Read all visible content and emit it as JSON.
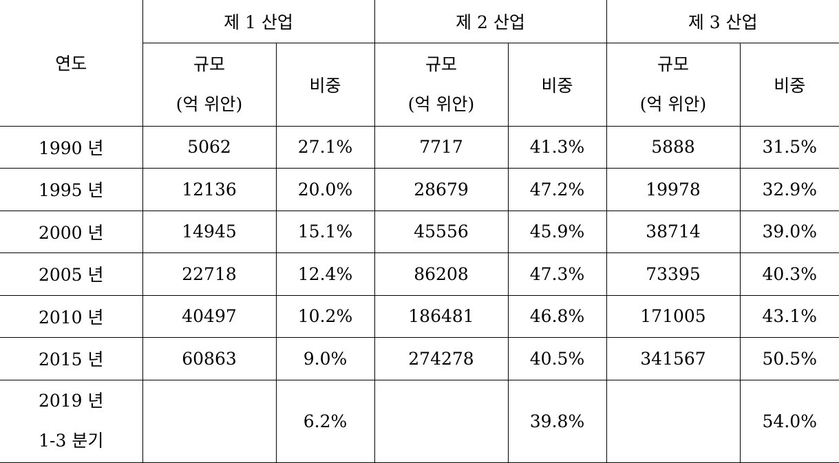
{
  "table": {
    "corner": "연도",
    "groups": [
      {
        "title": "제 1 산업",
        "size_label": [
          "규모",
          "(억 위안)"
        ],
        "share_label": "비중"
      },
      {
        "title": "제 2 산업",
        "size_label": [
          "규모",
          "(억 위안)"
        ],
        "share_label": "비중"
      },
      {
        "title": "제 3 산업",
        "size_label": [
          "규모",
          "(억 위안)"
        ],
        "share_label": "비중"
      }
    ],
    "rows": [
      {
        "year": [
          "1990 년"
        ],
        "industries": [
          {
            "size": "5062",
            "share": "27.1%"
          },
          {
            "size": "7717",
            "share": "41.3%"
          },
          {
            "size": "5888",
            "share": "31.5%"
          }
        ]
      },
      {
        "year": [
          "1995 년"
        ],
        "industries": [
          {
            "size": "12136",
            "share": "20.0%"
          },
          {
            "size": "28679",
            "share": "47.2%"
          },
          {
            "size": "19978",
            "share": "32.9%"
          }
        ]
      },
      {
        "year": [
          "2000 년"
        ],
        "industries": [
          {
            "size": "14945",
            "share": "15.1%"
          },
          {
            "size": "45556",
            "share": "45.9%"
          },
          {
            "size": "38714",
            "share": "39.0%"
          }
        ]
      },
      {
        "year": [
          "2005 년"
        ],
        "industries": [
          {
            "size": "22718",
            "share": "12.4%"
          },
          {
            "size": "86208",
            "share": "47.3%"
          },
          {
            "size": "73395",
            "share": "40.3%"
          }
        ]
      },
      {
        "year": [
          "2010 년"
        ],
        "industries": [
          {
            "size": "40497",
            "share": "10.2%"
          },
          {
            "size": "186481",
            "share": "46.8%"
          },
          {
            "size": "171005",
            "share": "43.1%"
          }
        ]
      },
      {
        "year": [
          "2015 년"
        ],
        "industries": [
          {
            "size": "60863",
            "share": "9.0%"
          },
          {
            "size": "274278",
            "share": "40.5%"
          },
          {
            "size": "341567",
            "share": "50.5%"
          }
        ]
      },
      {
        "year": [
          "2019 년",
          "1-3 분기"
        ],
        "industries": [
          {
            "share": "6.2%"
          },
          {
            "share": "39.8%"
          },
          {
            "share": "54.0%"
          }
        ]
      }
    ]
  }
}
